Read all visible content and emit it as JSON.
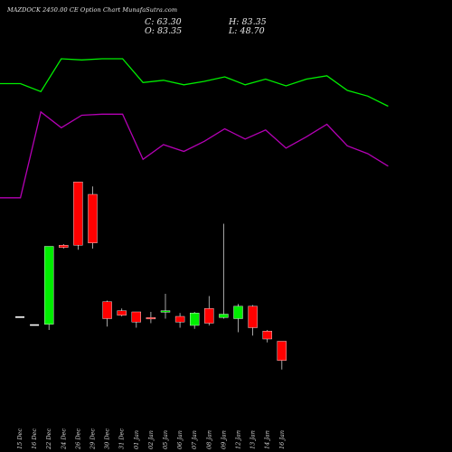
{
  "header": {
    "title": "MAZDOCK 2450.00  CE Option  Chart  MunafaSutra.com",
    "close": "C: 63.30",
    "open": "O: 83.35",
    "high": "H: 83.35",
    "low": "L: 48.70"
  },
  "colors": {
    "background": "#000000",
    "up": "#00ee00",
    "down": "#ff0000",
    "neutral": "#ffffff",
    "line_upper": "#00ee00",
    "line_lower": "#b400b4"
  },
  "chart_data": {
    "type": "candlestick",
    "title": "MAZDOCK 2450.00  CE Option  Chart  MunafaSutra.com",
    "x_ticks": [
      "15 Dec",
      "16 Dec",
      "22 Dec",
      "24 Dec",
      "26 Dec",
      "29 Dec",
      "30 Dec",
      "31 Dec",
      "01 Jan",
      "02 Jan",
      "05 Jan",
      "06 Jan",
      "07 Jan",
      "08 Jan",
      "09 Jan",
      "12 Jan",
      "13 Jan",
      "14 Jan",
      "16 Jan"
    ],
    "candles": [
      {
        "open": 120,
        "close": 120,
        "high": 120,
        "low": 120,
        "color": "neutral"
      },
      {
        "open": 113,
        "close": 113,
        "high": 113,
        "low": 113,
        "color": "neutral"
      },
      {
        "open": 113,
        "close": 182,
        "high": 182,
        "low": 108,
        "color": "up"
      },
      {
        "open": 183,
        "close": 181,
        "high": 184,
        "low": 180,
        "color": "down"
      },
      {
        "open": 239,
        "close": 183,
        "high": 239,
        "low": 179,
        "color": "down"
      },
      {
        "open": 228,
        "close": 185,
        "high": 235,
        "low": 180,
        "color": "down"
      },
      {
        "open": 133,
        "close": 118,
        "high": 134,
        "low": 111,
        "color": "down"
      },
      {
        "open": 125,
        "close": 121,
        "high": 127,
        "low": 120,
        "color": "down"
      },
      {
        "open": 124,
        "close": 115,
        "high": 124,
        "low": 110,
        "color": "down"
      },
      {
        "open": 119,
        "close": 119,
        "high": 124,
        "low": 114,
        "color": "down"
      },
      {
        "open": 124,
        "close": 125,
        "high": 140,
        "low": 118,
        "color": "up"
      },
      {
        "open": 120,
        "close": 115,
        "high": 123,
        "low": 110,
        "color": "down"
      },
      {
        "open": 112,
        "close": 123,
        "high": 124,
        "low": 109,
        "color": "up"
      },
      {
        "open": 127,
        "close": 114,
        "high": 138,
        "low": 112,
        "color": "down"
      },
      {
        "open": 119,
        "close": 122,
        "high": 202,
        "low": 118,
        "color": "up"
      },
      {
        "open": 118,
        "close": 129,
        "high": 131,
        "low": 106,
        "color": "up"
      },
      {
        "open": 129,
        "close": 110,
        "high": 130,
        "low": 103,
        "color": "down"
      },
      {
        "open": 107,
        "close": 100,
        "high": 108,
        "low": 97,
        "color": "down"
      },
      {
        "open": 98,
        "close": 81,
        "high": 98,
        "low": 73,
        "color": "down"
      }
    ],
    "overlay_lines": [
      {
        "color": "green",
        "values": [
          326,
          326,
          319,
          348,
          347,
          348,
          348,
          327,
          329,
          325,
          328,
          332,
          325,
          330,
          324,
          330,
          333,
          320,
          315,
          306
        ]
      },
      {
        "color": "purple",
        "values": [
          225,
          225,
          301,
          287,
          298,
          299,
          299,
          259,
          272,
          266,
          275,
          286,
          277,
          285,
          269,
          279,
          290,
          271,
          264,
          253
        ]
      },
      {
        "color": "purple",
        "values": [],
        "note_unused": true
      }
    ],
    "y_range": [
      0,
      400
    ],
    "grid": false,
    "legend": "none"
  }
}
